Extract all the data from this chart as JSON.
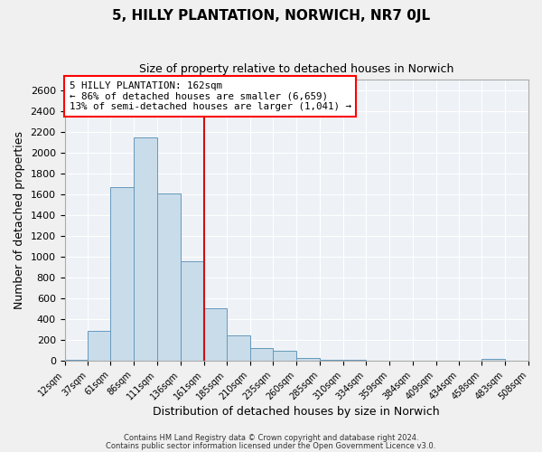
{
  "title": "5, HILLY PLANTATION, NORWICH, NR7 0JL",
  "subtitle": "Size of property relative to detached houses in Norwich",
  "xlabel": "Distribution of detached houses by size in Norwich",
  "ylabel": "Number of detached properties",
  "bar_color": "#c9dcea",
  "bar_edge_color": "#6699bb",
  "background_color": "#eef2f7",
  "grid_color": "#ffffff",
  "vline_x": 161,
  "vline_color": "#cc1111",
  "annotation_line1": "5 HILLY PLANTATION: 162sqm",
  "annotation_line2": "← 86% of detached houses are smaller (6,659)",
  "annotation_line3": "13% of semi-detached houses are larger (1,041) →",
  "bin_edges": [
    12,
    37,
    61,
    86,
    111,
    136,
    161,
    185,
    210,
    235,
    260,
    285,
    310,
    334,
    359,
    384,
    409,
    434,
    458,
    483,
    508
  ],
  "bin_heights": [
    15,
    290,
    1670,
    2145,
    1610,
    960,
    510,
    245,
    120,
    95,
    28,
    10,
    8,
    5,
    5,
    3,
    3,
    2,
    18,
    2
  ],
  "ylim": [
    0,
    2700
  ],
  "yticks": [
    0,
    200,
    400,
    600,
    800,
    1000,
    1200,
    1400,
    1600,
    1800,
    2000,
    2200,
    2400,
    2600
  ],
  "footnote1": "Contains HM Land Registry data © Crown copyright and database right 2024.",
  "footnote2": "Contains public sector information licensed under the Open Government Licence v3.0."
}
